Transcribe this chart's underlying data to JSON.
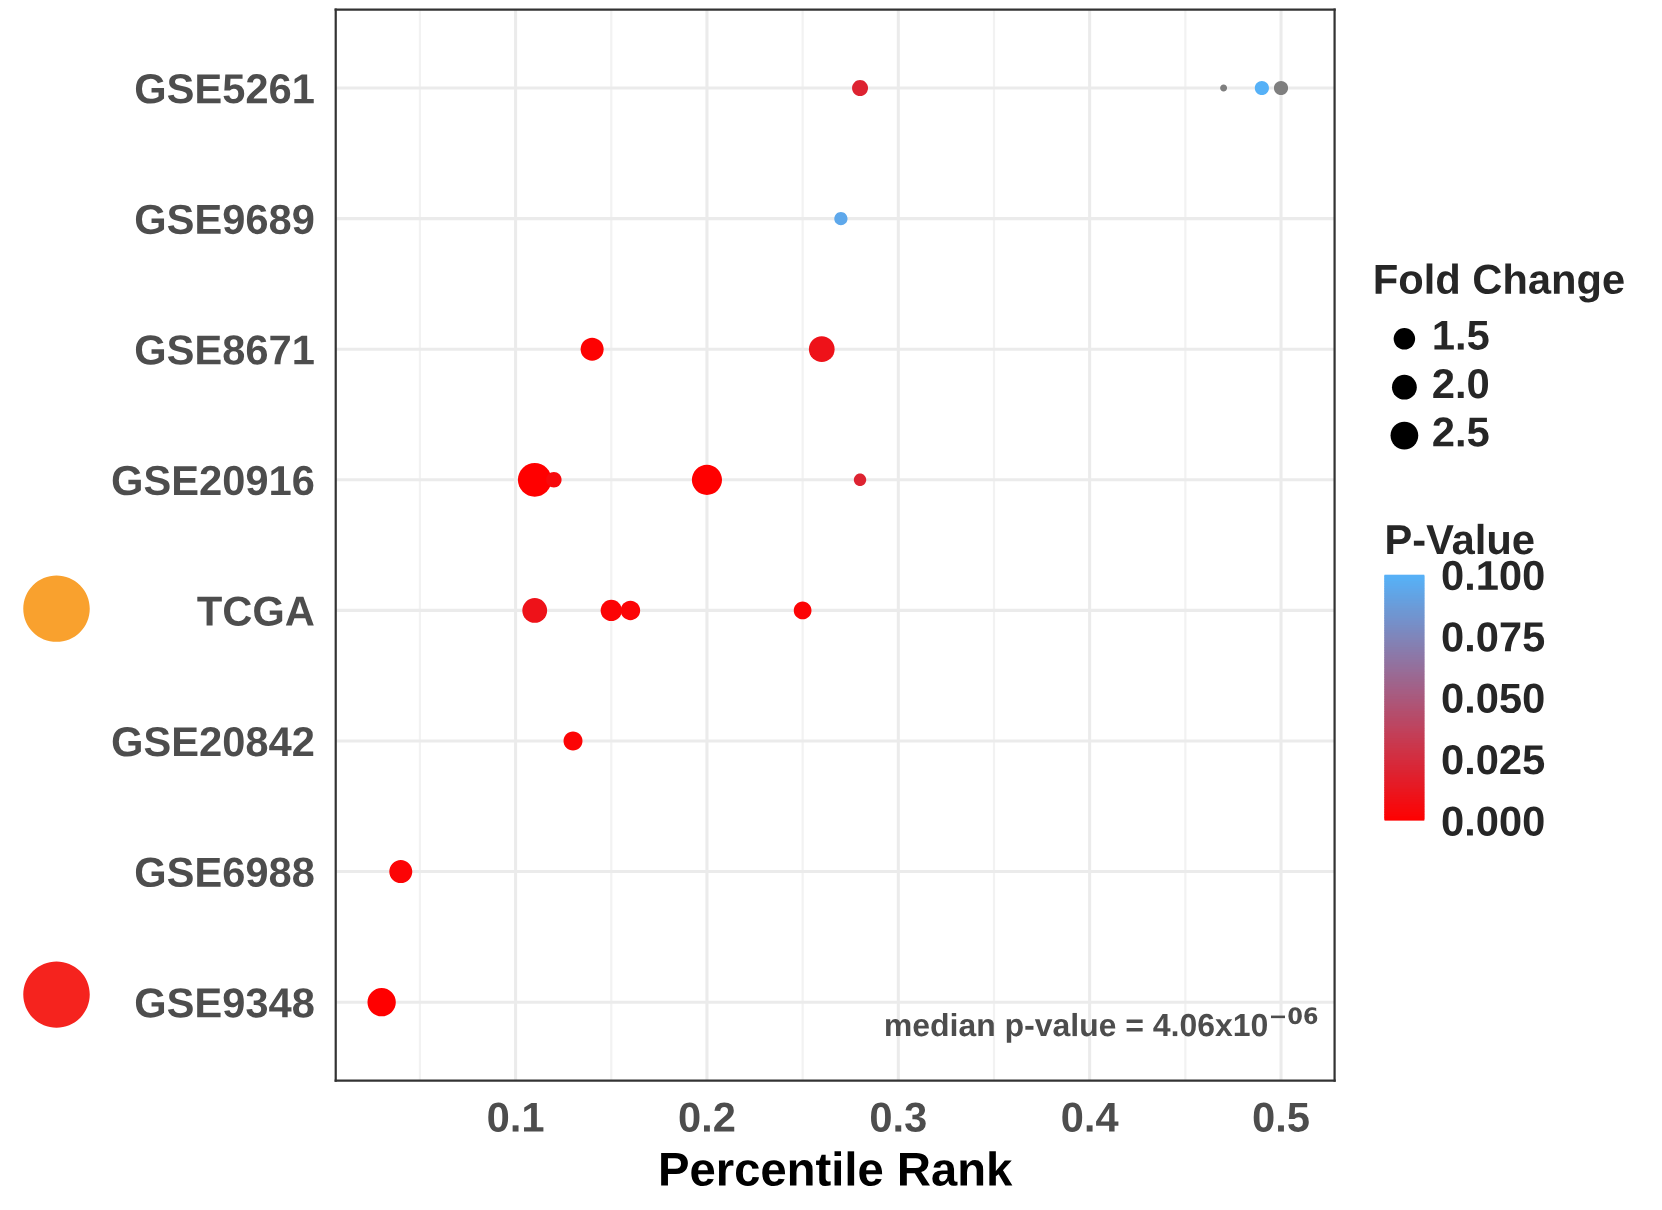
{
  "chart_data": {
    "type": "bubble",
    "orientation": "horizontal",
    "xlabel": "Percentile Rank",
    "legend_title": "Fold Change",
    "clabel": "P-Value",
    "categories": [
      "GSE5261",
      "GSE9689",
      "GSE8671",
      "GSE20916",
      "TCGA",
      "GSE20842",
      "GSE6988",
      "GSE9348"
    ],
    "series": [
      {
        "values": [
          0.28,
          0.27,
          0.14,
          0.11,
          0.11,
          0.13,
          0.04,
          0.03
        ],
        "sizes": [
          0.83,
          0.57,
          1.72,
          3.68,
          2.0,
          1.17,
          1.72,
          2.61
        ],
        "cvalues": [
          0.02,
          0.095,
          0.001,
          0.0,
          0.01,
          0.002,
          0.002,
          0.0
        ],
        "colors": [
          "#dd2331",
          "#5ea8eb",
          "#fd0202",
          "#ff0000",
          "#ee1219",
          "#fc0405",
          "#fc0405",
          "#ff0000"
        ]
      },
      {
        "values": [
          0.47,
          null,
          0.26,
          0.12,
          0.15,
          null,
          null,
          null
        ],
        "sizes": [
          0.16,
          null,
          2.15,
          0.77,
          1.47,
          null,
          null,
          null
        ],
        "cvalues": [
          null,
          null,
          0.01,
          0.005,
          0.002,
          null,
          null,
          null
        ],
        "colors": [
          "#7f7f7f",
          null,
          "#ee1219",
          "#f7090c",
          "#fc0405",
          null,
          null,
          null
        ]
      },
      {
        "values": [
          0.49,
          null,
          null,
          0.2,
          0.16,
          null,
          null,
          null
        ],
        "sizes": [
          0.65,
          null,
          null,
          2.95,
          1.23,
          null,
          null,
          null
        ],
        "cvalues": [
          0.1,
          null,
          null,
          0.0,
          0.002,
          null,
          null,
          null
        ],
        "colors": [
          "#56b1f7",
          null,
          null,
          "#ff0000",
          "#fc0405",
          null,
          null,
          null
        ]
      },
      {
        "values": [
          0.5,
          null,
          null,
          0.28,
          0.25,
          null,
          null,
          null
        ],
        "sizes": [
          0.65,
          null,
          null,
          0.5,
          1.02,
          null,
          null,
          null
        ],
        "cvalues": [
          null,
          null,
          null,
          0.02,
          0.002,
          null,
          null,
          null
        ],
        "colors": [
          "#7f7f7f",
          null,
          null,
          "#dd2331",
          "#fc0405",
          null,
          null,
          null
        ]
      }
    ],
    "size_legend": [
      1.5,
      {
        "value": 2,
        "label": "2.0"
      },
      2.5
    ],
    "clim": [
      0.0,
      0.1
    ],
    "cticks": [
      {
        "value": 0.0,
        "label": "0.000"
      },
      {
        "value": 0.025,
        "label": "0.025"
      },
      {
        "value": 0.05,
        "label": "0.050"
      },
      {
        "value": 0.075,
        "label": "0.075"
      },
      {
        "value": 0.1,
        "label": "0.100"
      }
    ],
    "xlim": [
      0.006,
      0.528
    ],
    "xticks": [
      0.1,
      0.2,
      0.3,
      0.4,
      0.5
    ],
    "grid": true,
    "annotations": [
      "median p-value = 4.06x10$^{−06}$"
    ]
  }
}
